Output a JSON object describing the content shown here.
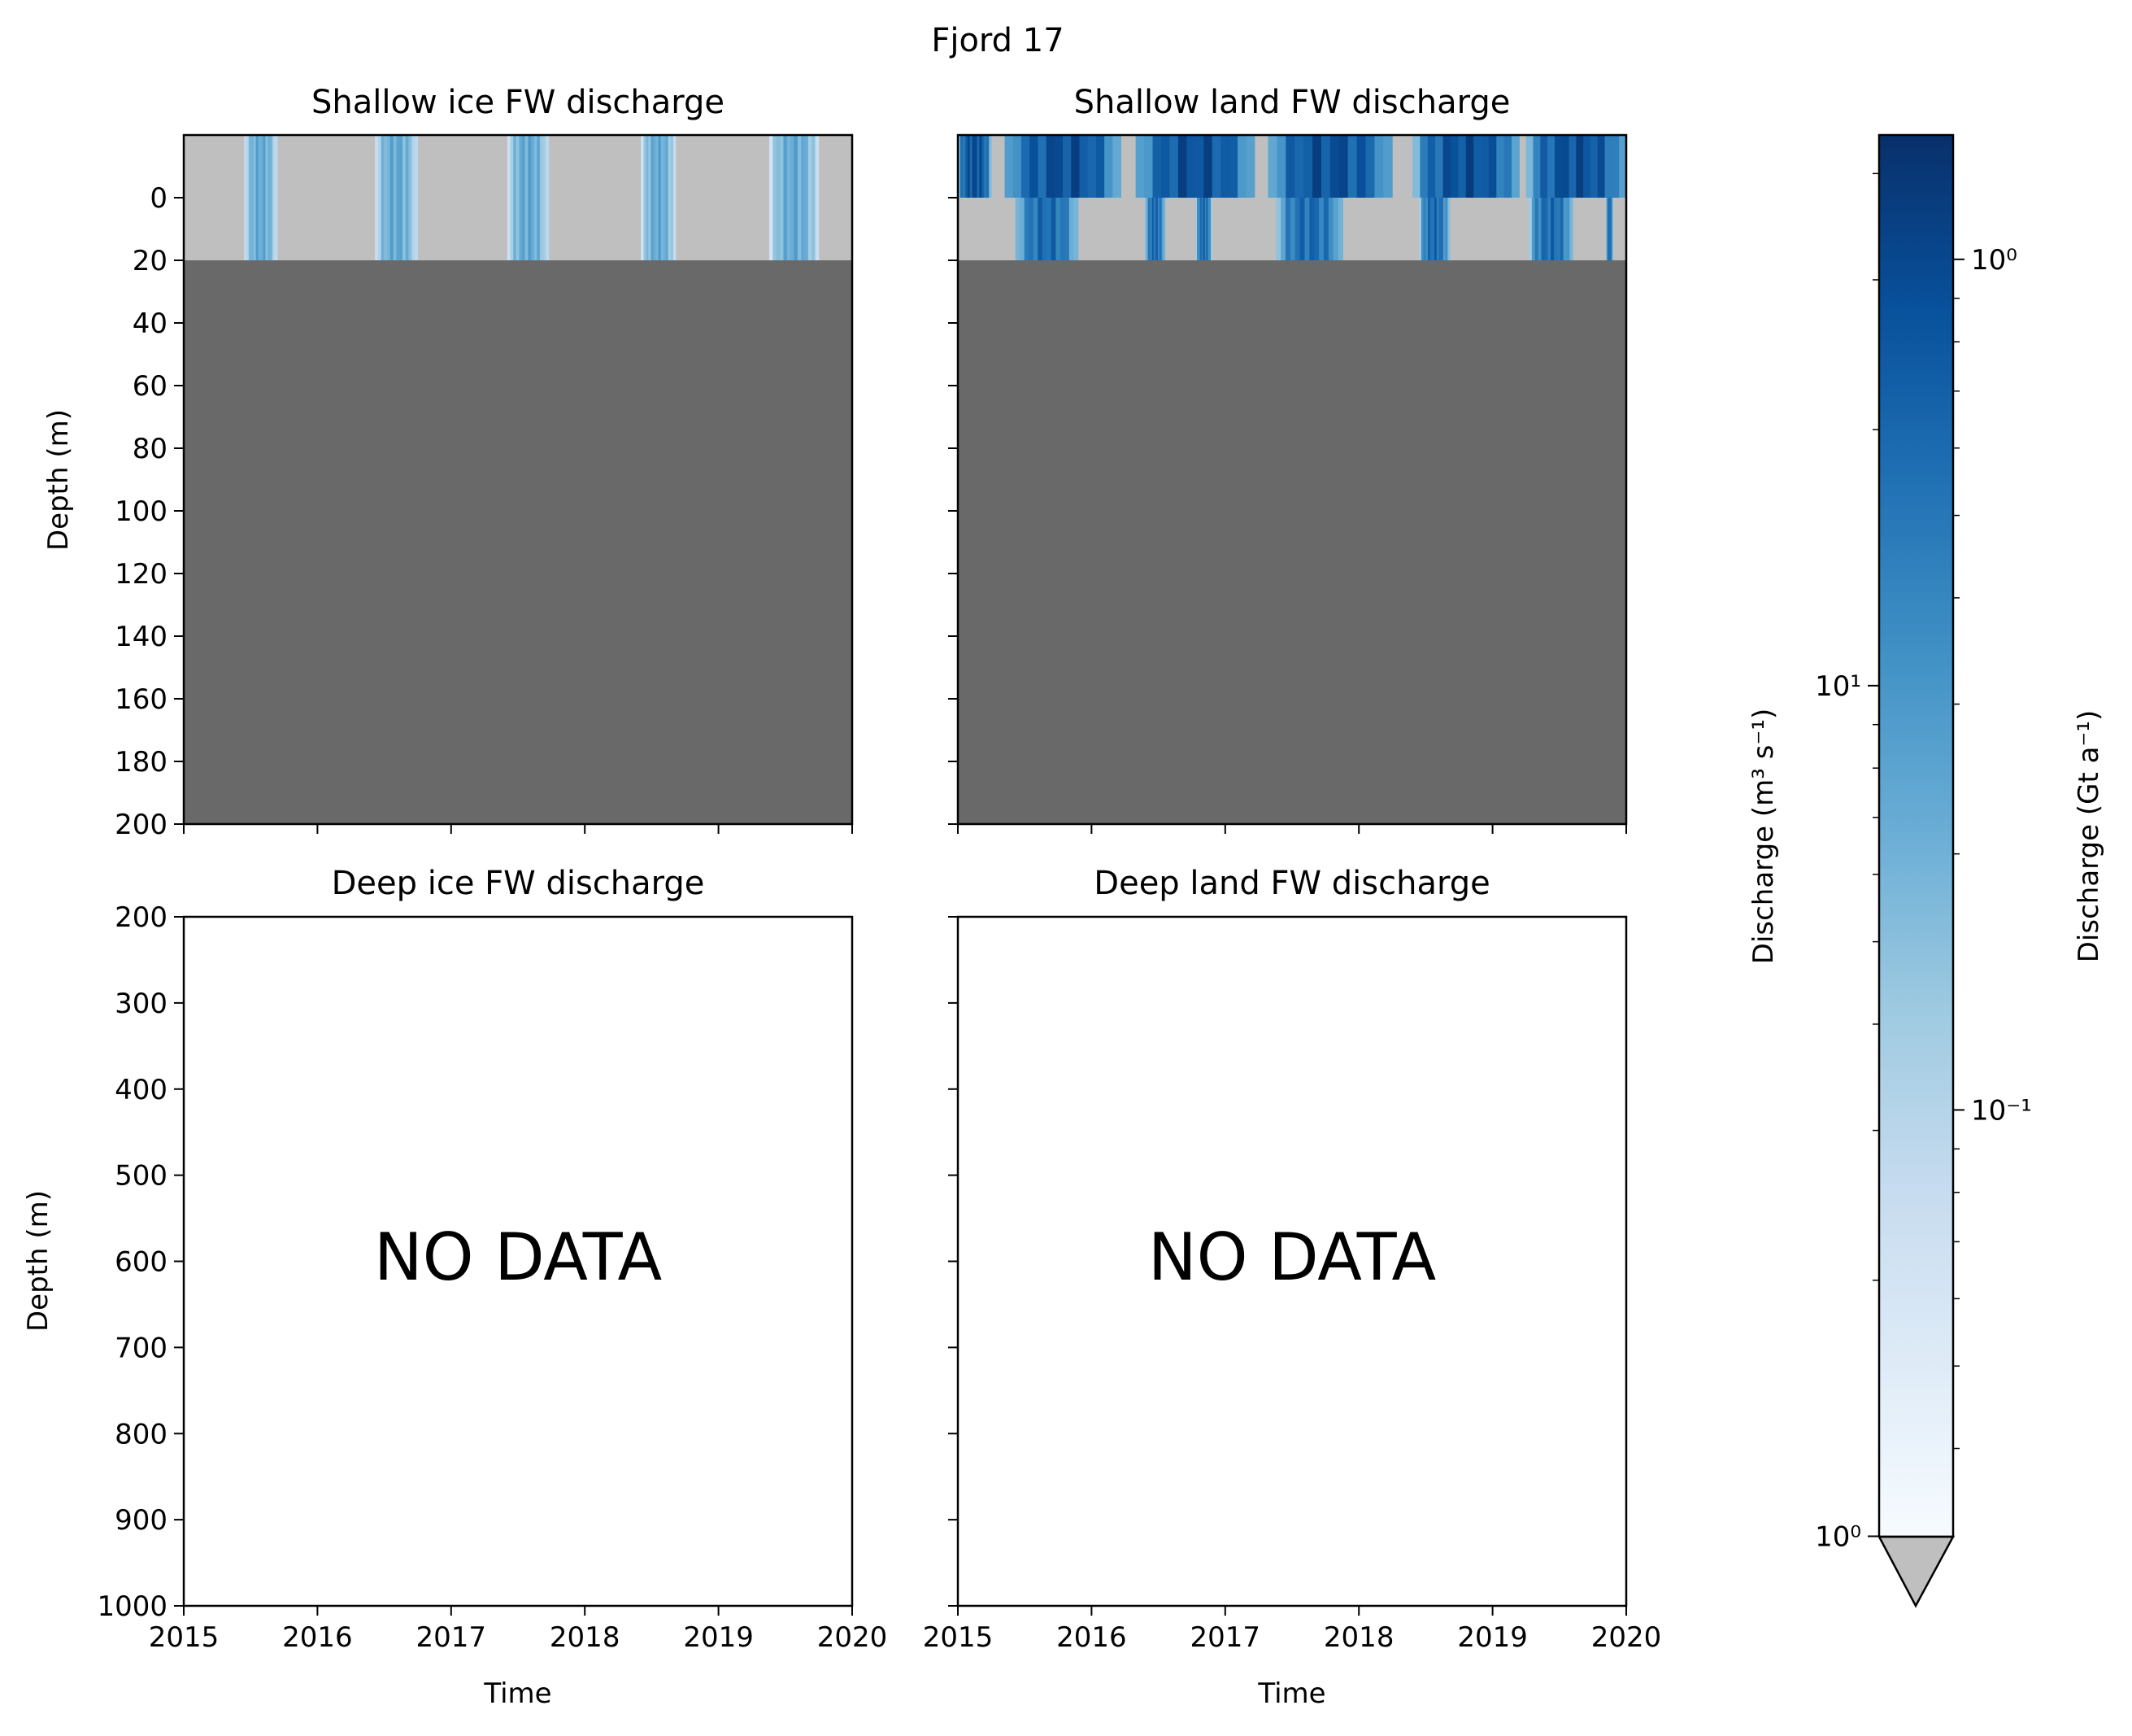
{
  "figure": {
    "suptitle": "Fjord 17"
  },
  "chart_data": [
    {
      "type": "heatmap",
      "title": "Shallow ice FW discharge",
      "xlabel": "",
      "ylabel": "Depth (m)",
      "xlim": [
        2015,
        2020
      ],
      "ylim": [
        200,
        -20
      ],
      "xticks": [
        2015,
        2016,
        2017,
        2018,
        2019,
        2020
      ],
      "xticklabels_visible": false,
      "yticks": [
        0,
        20,
        40,
        60,
        80,
        100,
        120,
        140,
        160,
        180,
        200
      ],
      "yticklabels": [
        "0",
        "20",
        "40",
        "60",
        "80",
        "100",
        "120",
        "140",
        "160",
        "180",
        "200"
      ],
      "below_data_value": "grey (below colorbar minimum)",
      "no_data_region_depth": [
        20,
        200
      ],
      "layers": [
        {
          "depth_range": [
            -20,
            0
          ],
          "discharge_periods": [
            [
              2015.45,
              2015.7
            ],
            [
              2016.43,
              2016.75
            ],
            [
              2017.42,
              2017.73
            ],
            [
              2018.42,
              2018.68
            ],
            [
              2019.38,
              2019.75
            ]
          ],
          "peak_discharge": 0.3
        },
        {
          "depth_range": [
            0,
            20
          ],
          "discharge_periods": [
            [
              2015.45,
              2015.7
            ],
            [
              2016.43,
              2016.75
            ],
            [
              2017.42,
              2017.73
            ],
            [
              2018.42,
              2018.68
            ],
            [
              2019.38,
              2019.75
            ]
          ],
          "peak_discharge": 0.3
        }
      ]
    },
    {
      "type": "heatmap",
      "title": "Shallow land FW discharge",
      "xlabel": "",
      "ylabel": "",
      "xlim": [
        2015,
        2020
      ],
      "ylim": [
        200,
        -20
      ],
      "xticks": [
        2015,
        2016,
        2017,
        2018,
        2019,
        2020
      ],
      "xticklabels_visible": false,
      "yticks": [
        0,
        20,
        40,
        60,
        80,
        100,
        120,
        140,
        160,
        180,
        200
      ],
      "yticklabels_visible": false,
      "no_data_region_depth": [
        20,
        200
      ],
      "layers": [
        {
          "depth_range": [
            -20,
            0
          ],
          "discharge_periods": [
            [
              2015.0,
              2015.25
            ],
            [
              2015.35,
              2016.22
            ],
            [
              2016.33,
              2017.22
            ],
            [
              2017.32,
              2018.25
            ],
            [
              2018.4,
              2019.2
            ],
            [
              2019.25,
              2020.0
            ]
          ],
          "peak_discharge": 1.2
        },
        {
          "depth_range": [
            0,
            20
          ],
          "discharge_periods": [
            [
              2015.43,
              2015.9
            ],
            [
              2016.4,
              2016.55
            ],
            [
              2016.78,
              2016.9
            ],
            [
              2017.38,
              2017.88
            ],
            [
              2018.45,
              2018.68
            ],
            [
              2019.27,
              2019.6
            ],
            [
              2019.85,
              2019.9
            ]
          ],
          "peak_discharge": 0.8
        }
      ]
    },
    {
      "type": "heatmap",
      "title": "Deep ice FW discharge",
      "xlabel": "Time",
      "ylabel": "Depth (m)",
      "xlim": [
        2015,
        2020
      ],
      "ylim": [
        1000,
        200
      ],
      "xticks": [
        2015,
        2016,
        2017,
        2018,
        2019,
        2020
      ],
      "xticklabels": [
        "2015",
        "2016",
        "2017",
        "2018",
        "2019",
        "2020"
      ],
      "yticks": [
        200,
        300,
        400,
        500,
        600,
        700,
        800,
        900,
        1000
      ],
      "yticklabels": [
        "200",
        "300",
        "400",
        "500",
        "600",
        "700",
        "800",
        "900",
        "1000"
      ],
      "annotation": "NO DATA"
    },
    {
      "type": "heatmap",
      "title": "Deep land FW discharge",
      "xlabel": "Time",
      "ylabel": "",
      "xlim": [
        2015,
        2020
      ],
      "ylim": [
        1000,
        200
      ],
      "xticks": [
        2015,
        2016,
        2017,
        2018,
        2019,
        2020
      ],
      "xticklabels": [
        "2015",
        "2016",
        "2017",
        "2018",
        "2019",
        "2020"
      ],
      "yticks": [
        200,
        300,
        400,
        500,
        600,
        700,
        800,
        900,
        1000
      ],
      "yticklabels_visible": false,
      "annotation": "NO DATA"
    }
  ],
  "colorbar": {
    "colormap": "Blues",
    "scale": "log",
    "extend": "min",
    "under_color": "#bfbfbf",
    "no_data_color": "#696969",
    "left_axis_label": "Discharge (m³ s⁻¹)",
    "left_ticklabels": [
      "10⁰",
      "10¹"
    ],
    "right_axis_label": "Discharge (Gt a⁻¹)",
    "right_ticklabels": [
      "10⁻¹",
      "10⁰"
    ],
    "range_gt_per_year": [
      0.0315,
      1.4
    ]
  },
  "colors": {
    "below_min": "#bfbfbf",
    "no_data": "#696969",
    "blues_light": "#f7fbff",
    "blues_dark": "#08306b"
  }
}
